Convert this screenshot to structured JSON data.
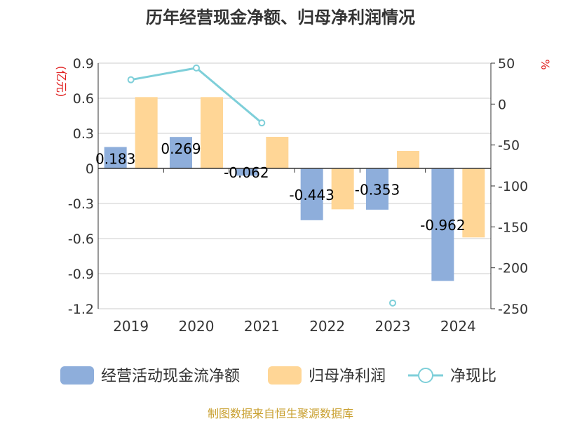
{
  "chart_data": {
    "type": "bar",
    "title": "历年经营现金净额、归母净利润情况",
    "categories": [
      "2019",
      "2020",
      "2021",
      "2022",
      "2023",
      "2024"
    ],
    "left_axis": {
      "label": "(亿元)",
      "range": [
        -1.2,
        0.9
      ],
      "ticks": [
        0.9,
        0.6,
        0.3,
        0,
        -0.3,
        -0.6,
        -0.9,
        -1.2
      ],
      "tick_labels": [
        "0.9",
        "0.6",
        "0.3",
        "0",
        "-0.3",
        "-0.6",
        "-0.9",
        "-1.2"
      ]
    },
    "right_axis": {
      "label": "%",
      "range": [
        -250,
        50
      ],
      "ticks": [
        50,
        0,
        -50,
        -100,
        -150,
        -200,
        -250
      ],
      "tick_labels": [
        "50",
        "0",
        "-50",
        "-100",
        "-150",
        "-200",
        "-250"
      ]
    },
    "grid": true,
    "legend_position": "bottom",
    "series": [
      {
        "name": "经营活动现金流净额",
        "type": "bar",
        "axis": "left",
        "color": "#8eaedb",
        "values": [
          0.183,
          0.269,
          -0.062,
          -0.443,
          -0.353,
          -0.962
        ],
        "labels": [
          "0.183",
          "0.269",
          "-0.062",
          "-0.443",
          "-0.353",
          "-0.962"
        ]
      },
      {
        "name": "归母净利润",
        "type": "bar",
        "axis": "left",
        "color": "#ffd696",
        "values": [
          0.61,
          0.61,
          0.27,
          -0.35,
          0.15,
          -0.59
        ]
      },
      {
        "name": "净现比",
        "type": "line",
        "axis": "right",
        "color": "#7ecfd9",
        "values": [
          29.7,
          44.1,
          -23.0,
          null,
          -243.0,
          null
        ]
      }
    ]
  },
  "footer": {
    "source": "制图数据来自恒生聚源数据库"
  }
}
